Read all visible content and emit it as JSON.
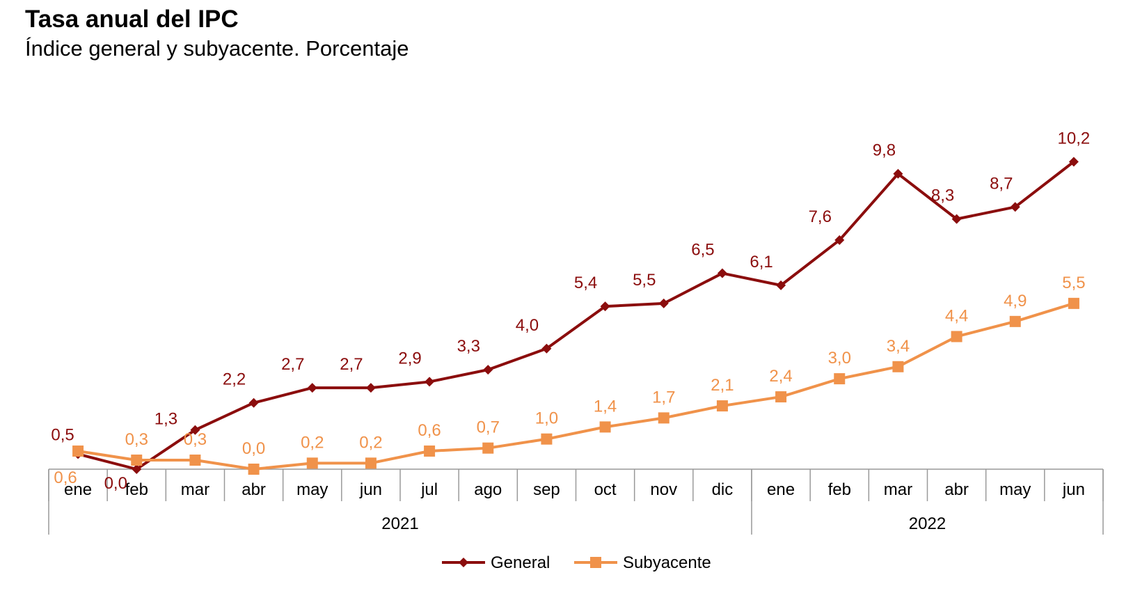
{
  "chart_data": {
    "type": "line",
    "title": "Tasa anual del IPC",
    "subtitle": "Índice general y subyacente. Porcentaje",
    "categories": [
      "ene",
      "feb",
      "mar",
      "abr",
      "may",
      "jun",
      "jul",
      "ago",
      "sep",
      "oct",
      "nov",
      "dic",
      "ene",
      "feb",
      "mar",
      "abr",
      "may",
      "jun"
    ],
    "groups": [
      {
        "label": "2021",
        "count": 12
      },
      {
        "label": "2022",
        "count": 6
      }
    ],
    "series": [
      {
        "name": "General",
        "color": "#8B0D0D",
        "marker": "diamond",
        "values": [
          0.5,
          0.0,
          1.3,
          2.2,
          2.7,
          2.7,
          2.9,
          3.3,
          4.0,
          5.4,
          5.5,
          6.5,
          6.1,
          7.6,
          9.8,
          8.3,
          8.7,
          10.2
        ],
        "labels": [
          "0,5",
          "0,0",
          "1,3",
          "2,2",
          "2,7",
          "2,7",
          "2,9",
          "3,3",
          "4,0",
          "5,4",
          "5,5",
          "6,5",
          "6,1",
          "7,6",
          "9,8",
          "8,3",
          "8,7",
          "10,2"
        ]
      },
      {
        "name": "Subyacente",
        "color": "#F0924A",
        "marker": "square",
        "values": [
          0.6,
          0.3,
          0.3,
          0.0,
          0.2,
          0.2,
          0.6,
          0.7,
          1.0,
          1.4,
          1.7,
          2.1,
          2.4,
          3.0,
          3.4,
          4.4,
          4.9,
          5.5
        ],
        "labels": [
          "0,6",
          "0,3",
          "0,3",
          "0,0",
          "0,2",
          "0,2",
          "0,6",
          "0,7",
          "1,0",
          "1,4",
          "1,7",
          "2,1",
          "2,4",
          "3,0",
          "3,4",
          "4,4",
          "4,9",
          "5,5"
        ]
      }
    ],
    "legend": "bottom",
    "grid": false,
    "ylim": [
      0,
      10.2
    ]
  }
}
